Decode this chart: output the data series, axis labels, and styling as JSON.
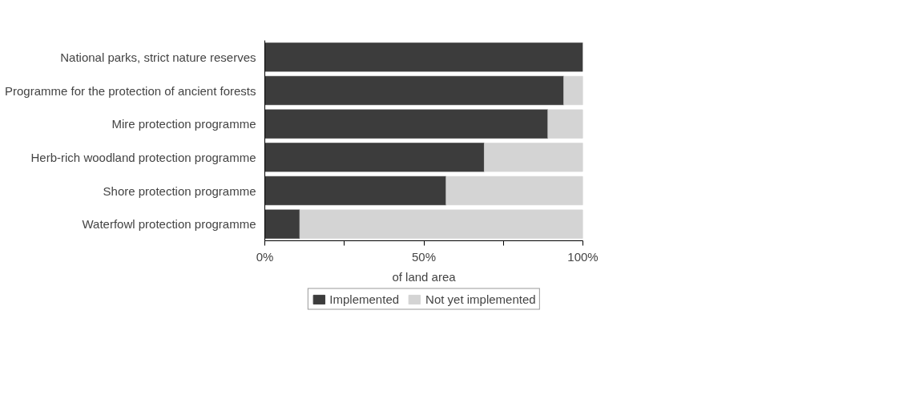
{
  "chart_data": {
    "type": "bar",
    "orientation": "horizontal",
    "stacked": true,
    "xlabel": "of land area",
    "categories": [
      "National parks, strict nature reserves",
      "Programme for the protection of ancient forests",
      "Mire protection programme",
      "Herb-rich woodland protection programme",
      "Shore protection programme",
      "Waterfowl protection programme"
    ],
    "series": [
      {
        "name": "Implemented",
        "color": "#3c3c3c",
        "values": [
          100,
          94,
          89,
          69,
          57,
          11
        ]
      },
      {
        "name": "Not yet implemented",
        "color": "#d4d4d4",
        "values": [
          0,
          6,
          11,
          31,
          43,
          89
        ]
      }
    ],
    "xlim": [
      0,
      100
    ],
    "xticks": [
      {
        "value": 0,
        "label": "0%"
      },
      {
        "value": 25,
        "label": null
      },
      {
        "value": 50,
        "label": "50%"
      },
      {
        "value": 75,
        "label": null
      },
      {
        "value": 100,
        "label": "100%"
      }
    ],
    "grid": false,
    "legend": "bottom"
  }
}
